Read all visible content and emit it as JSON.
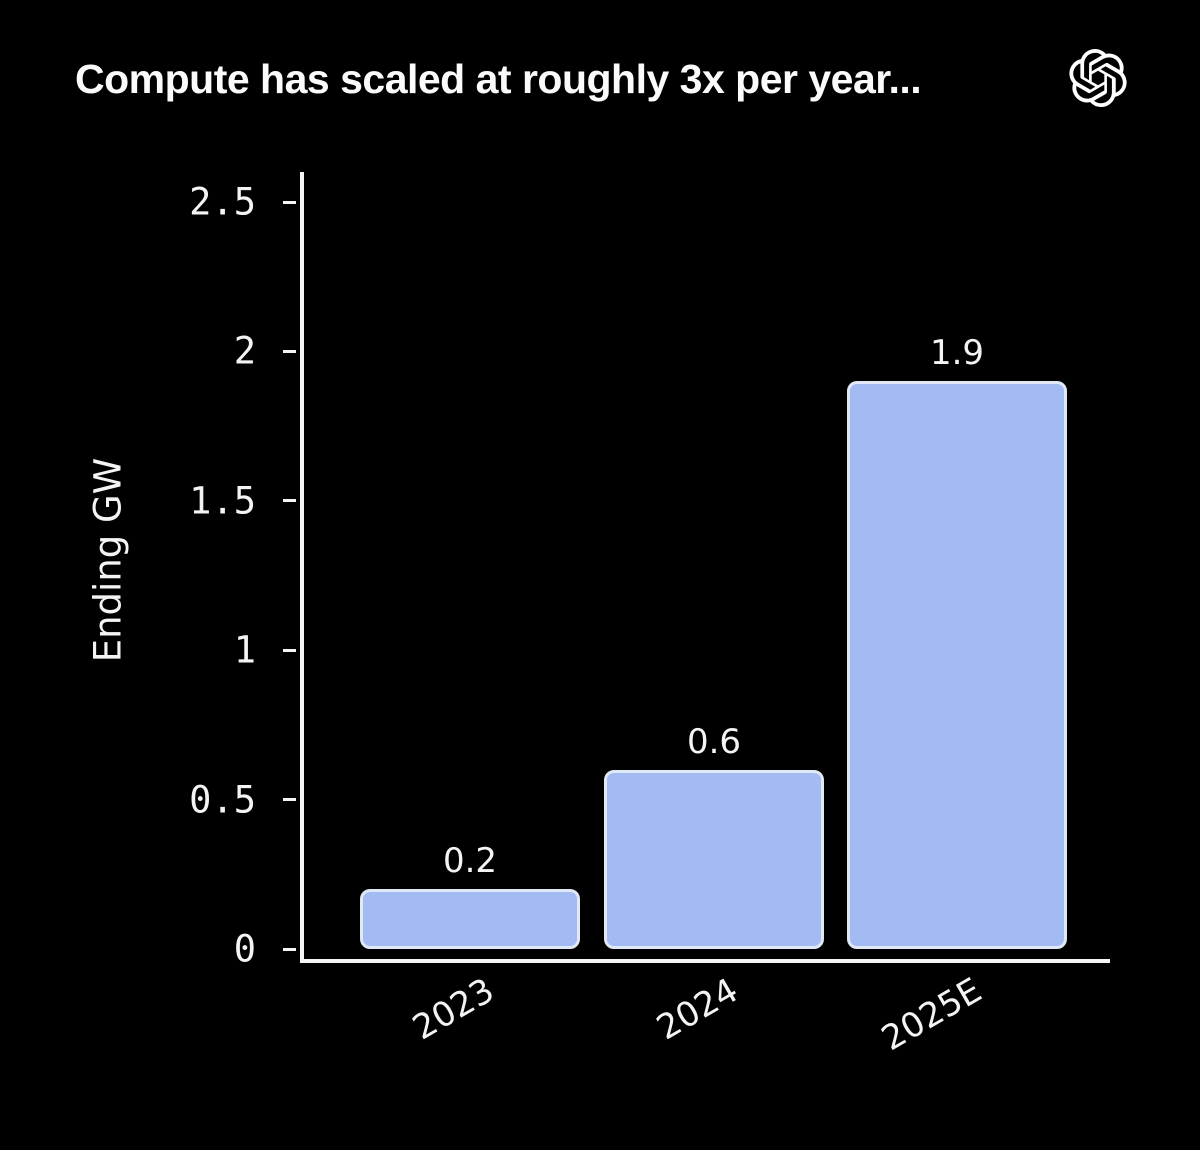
{
  "title": "Compute has scaled at roughly 3x per year...",
  "logo": {
    "icon": "openai-logo"
  },
  "chart_data": {
    "type": "bar",
    "title": "Compute has scaled at roughly 3x per year...",
    "categories": [
      "2023",
      "2024",
      "2025E"
    ],
    "values": [
      0.2,
      0.6,
      1.9
    ],
    "value_labels": [
      "0.2",
      "0.6",
      "1.9"
    ],
    "xlabel": "",
    "ylabel": "Ending GW",
    "ylim": [
      0,
      2.5
    ],
    "yticks": [
      0,
      0.5,
      1,
      1.5,
      2,
      2.5
    ],
    "ytick_labels": [
      "0",
      "0.5",
      "1",
      "1.5",
      "2",
      "2.5"
    ],
    "x_tick_rotation_deg": 30,
    "grid": false,
    "legend": "none",
    "colors": {
      "background": "#000000",
      "bar_fill": "#a3bbf3",
      "bar_border": "#e0e8f6",
      "axis": "#f5f5f5",
      "text": "#f4f4f4",
      "title_text": "#fbfbfb"
    }
  }
}
